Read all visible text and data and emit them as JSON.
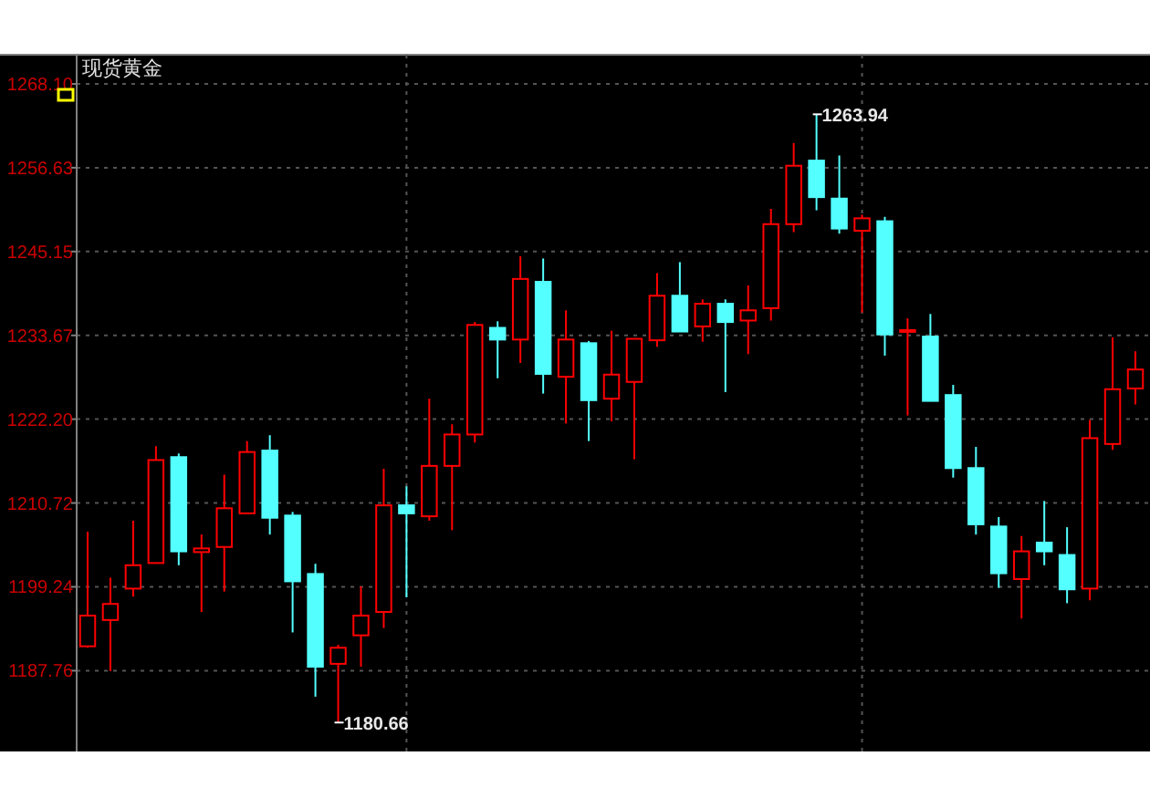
{
  "chart_data": {
    "type": "candlestick",
    "title": "现货黄金",
    "categories": [
      null,
      null,
      null,
      null,
      null,
      null,
      null,
      null,
      null,
      null,
      null,
      null,
      null,
      null,
      null,
      null,
      null,
      null,
      null,
      null,
      null,
      null,
      null,
      null,
      null,
      null,
      null,
      null,
      null,
      null,
      null,
      null,
      null,
      null,
      null,
      null,
      null,
      null,
      null,
      null,
      null,
      null,
      null,
      null,
      null,
      null,
      null
    ],
    "ohlc": [
      [
        1191.1,
        1206.8,
        1190.9,
        1195.3
      ],
      [
        1194.7,
        1200.5,
        1187.7,
        1196.9
      ],
      [
        1199.0,
        1208.3,
        1197.9,
        1202.2
      ],
      [
        1202.5,
        1218.5,
        1202.5,
        1216.6
      ],
      [
        1217.0,
        1217.5,
        1202.2,
        1204.1
      ],
      [
        1204.0,
        1206.4,
        1195.8,
        1204.5
      ],
      [
        1204.7,
        1214.6,
        1198.6,
        1210.0
      ],
      [
        1209.3,
        1219.2,
        1209.3,
        1217.7
      ],
      [
        1217.9,
        1220.0,
        1206.4,
        1208.7
      ],
      [
        1209.0,
        1209.5,
        1193.0,
        1200.0
      ],
      [
        1201.0,
        1202.4,
        1184.2,
        1188.3
      ],
      [
        1188.7,
        1191.3,
        1180.66,
        1190.9
      ],
      [
        1192.6,
        1199.3,
        1188.3,
        1195.3
      ],
      [
        1195.8,
        1215.4,
        1193.6,
        1210.4
      ],
      [
        1210.4,
        1213.0,
        1197.8,
        1209.3
      ],
      [
        1208.9,
        1225.0,
        1208.3,
        1215.8
      ],
      [
        1215.8,
        1221.5,
        1207.0,
        1220.1
      ],
      [
        1220.1,
        1235.5,
        1219.0,
        1235.1
      ],
      [
        1234.7,
        1235.6,
        1227.8,
        1233.1
      ],
      [
        1233.1,
        1244.5,
        1229.9,
        1241.4
      ],
      [
        1241.0,
        1244.2,
        1225.7,
        1228.4
      ],
      [
        1228.0,
        1237.1,
        1221.6,
        1233.1
      ],
      [
        1232.6,
        1232.9,
        1219.2,
        1224.8
      ],
      [
        1225.0,
        1234.3,
        1221.9,
        1228.3
      ],
      [
        1227.3,
        1233.2,
        1216.7,
        1233.2
      ],
      [
        1233.0,
        1242.2,
        1232.1,
        1239.1
      ],
      [
        1239.1,
        1243.7,
        1234.2,
        1234.2
      ],
      [
        1234.9,
        1238.6,
        1232.8,
        1238.0
      ],
      [
        1238.0,
        1238.6,
        1225.9,
        1235.5
      ],
      [
        1235.7,
        1240.5,
        1231.1,
        1237.1
      ],
      [
        1237.4,
        1251.0,
        1235.7,
        1248.9
      ],
      [
        1248.9,
        1260.0,
        1247.8,
        1256.9
      ],
      [
        1257.6,
        1263.94,
        1250.8,
        1252.6
      ],
      [
        1252.4,
        1258.3,
        1247.6,
        1248.3
      ],
      [
        1248.0,
        1250.2,
        1236.8,
        1249.7
      ],
      [
        1249.3,
        1249.9,
        1230.9,
        1233.8
      ],
      [
        1234.4,
        1236.0,
        1222.7,
        1234.4
      ],
      [
        1233.5,
        1236.6,
        1224.7,
        1224.7
      ],
      [
        1225.5,
        1226.9,
        1214.2,
        1215.5
      ],
      [
        1215.5,
        1218.4,
        1206.4,
        1207.8
      ],
      [
        1207.5,
        1208.8,
        1199.1,
        1201.1
      ],
      [
        1200.3,
        1206.2,
        1194.9,
        1204.1
      ],
      [
        1205.3,
        1211.0,
        1202.2,
        1204.1
      ],
      [
        1203.6,
        1207.4,
        1197.0,
        1198.9
      ],
      [
        1199.0,
        1222.1,
        1197.4,
        1219.6
      ],
      [
        1218.8,
        1233.4,
        1218.0,
        1226.3
      ],
      [
        1226.4,
        1231.5,
        1224.2,
        1229.0
      ]
    ],
    "colors": [
      "#ff0000",
      "#ff0000",
      "#ff0000",
      "#ff0000",
      "#54ffff",
      "#ff0000",
      "#ff0000",
      "#ff0000",
      "#54ffff",
      "#54ffff",
      "#54ffff",
      "#ff0000",
      "#ff0000",
      "#ff0000",
      "#54ffff",
      "#ff0000",
      "#ff0000",
      "#ff0000",
      "#54ffff",
      "#ff0000",
      "#54ffff",
      "#ff0000",
      "#54ffff",
      "#ff0000",
      "#ff0000",
      "#ff0000",
      "#54ffff",
      "#ff0000",
      "#54ffff",
      "#ff0000",
      "#ff0000",
      "#ff0000",
      "#54ffff",
      "#54ffff",
      "#ff0000",
      "#54ffff",
      "#ff0000",
      "#54ffff",
      "#54ffff",
      "#54ffff",
      "#54ffff",
      "#ff0000",
      "#54ffff",
      "#54ffff",
      "#ff0000",
      "#ff0000",
      "#ff0000"
    ],
    "ylim": [
      1176.7,
      1272.1
    ],
    "yticks": [
      {
        "value": 1268.1,
        "label": "1268.10"
      },
      1256.63,
      1245.15,
      1233.67,
      {
        "value": 1222.2,
        "label": "1222.20"
      },
      1210.72,
      1199.24,
      1187.76
    ],
    "grid": "y",
    "annotations": [
      "1263.94",
      "1180.66"
    ]
  }
}
